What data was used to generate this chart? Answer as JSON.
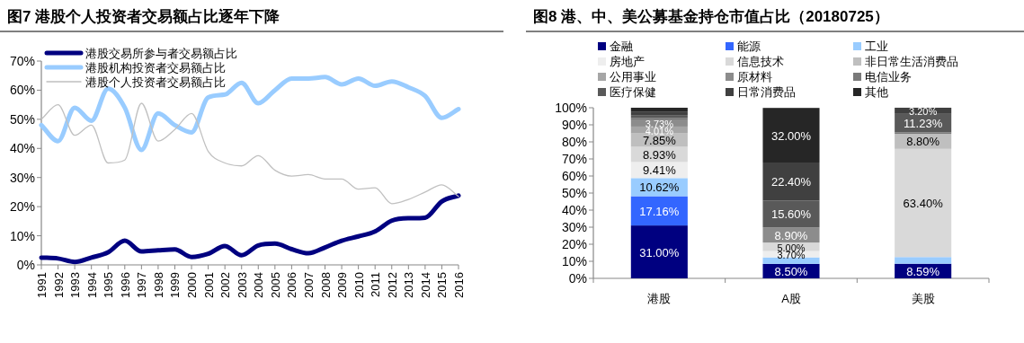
{
  "chart_data": [
    {
      "type": "line",
      "title": "图7  港股个人投资者交易额占比逐年下降",
      "categories": [
        "1991",
        "1992",
        "1993",
        "1994",
        "1995",
        "1996",
        "1997",
        "1998",
        "1999",
        "2000",
        "2001",
        "2002",
        "2003",
        "2004",
        "2005",
        "2006",
        "2007",
        "2008",
        "2009",
        "2010",
        "2011",
        "2012",
        "2013",
        "2014",
        "2015",
        "2016"
      ],
      "series": [
        {
          "name": "港股交易所参与者交易额占比",
          "color": "#000080",
          "values": [
            2.5,
            2.2,
            1.0,
            2.5,
            4.3,
            8.3,
            4.6,
            5.0,
            5.3,
            2.7,
            3.8,
            6.5,
            3.3,
            6.7,
            7.3,
            5.4,
            4.0,
            6.0,
            8.3,
            9.8,
            11.5,
            15.2,
            16.0,
            16.2,
            21.8,
            23.8
          ]
        },
        {
          "name": "港股机构投资者交易额占比",
          "color": "#99ccff",
          "values": [
            48,
            42.5,
            54,
            49.5,
            60.5,
            54,
            39.5,
            52,
            48,
            45.5,
            57.5,
            58.5,
            62.5,
            55.5,
            60,
            64,
            64,
            64.5,
            62,
            64,
            61.5,
            63,
            61,
            58,
            50.5,
            53.5
          ]
        },
        {
          "name": "港股个人投资者交易额占比",
          "color": "#c0c0c0",
          "values": [
            50,
            55,
            44.5,
            48,
            35,
            36,
            55.5,
            42.5,
            46.5,
            52,
            39,
            35,
            34,
            37.5,
            32.5,
            30.5,
            31,
            29.5,
            29.5,
            26,
            26.5,
            21,
            22.5,
            25,
            27.5,
            23.5
          ]
        }
      ],
      "ylim": [
        0,
        70
      ],
      "yticks": [
        {
          "value": 0,
          "label": "0%"
        },
        {
          "value": 10,
          "label": "10%"
        },
        {
          "value": 20,
          "label": "20%"
        },
        {
          "value": 30,
          "label": "30%"
        },
        {
          "value": 40,
          "label": "40%"
        },
        {
          "value": 50,
          "label": "50%"
        },
        {
          "value": 60,
          "label": "60%"
        },
        {
          "value": 70,
          "label": "70%"
        }
      ],
      "legend": "top left",
      "grid": false,
      "marker": "none"
    },
    {
      "type": "bar",
      "stacked": true,
      "title": "图8  港、中、美公募基金持仓市值占比（20180725）",
      "categories": [
        "港股",
        "A股",
        "美股"
      ],
      "series": [
        {
          "name": "金融",
          "color": "#000080",
          "values": [
            31.0,
            8.5,
            8.59
          ],
          "value_labels": [
            "31.00%",
            "8.50%",
            "8.59%"
          ]
        },
        {
          "name": "能源",
          "color": "#3366ff",
          "values": [
            17.16,
            0,
            0
          ],
          "value_labels": [
            "17.16%",
            null,
            null
          ]
        },
        {
          "name": "工业",
          "color": "#99ccff",
          "values": [
            10.62,
            3.8,
            3.9
          ],
          "value_labels": [
            "10.62%",
            null,
            null
          ]
        },
        {
          "name": "房地产",
          "color": "#eeeeee",
          "values": [
            9.41,
            3.7,
            0
          ],
          "value_labels": [
            "9.41%",
            "3.70%",
            null
          ]
        },
        {
          "name": "信息技术",
          "color": "#d9d9d9",
          "values": [
            8.93,
            5.0,
            63.4
          ],
          "value_labels": [
            "8.93%",
            "5.00%",
            "63.40%"
          ]
        },
        {
          "name": "非日常生活消费品",
          "color": "#bfbfbf",
          "values": [
            7.85,
            0,
            8.8
          ],
          "value_labels": [
            "7.85%",
            null,
            "8.80%"
          ]
        },
        {
          "name": "公用事业",
          "color": "#a6a6a6",
          "values": [
            4.01,
            0,
            0
          ],
          "value_labels": [
            "4.01%",
            null,
            null
          ]
        },
        {
          "name": "原材料",
          "color": "#8c8c8c",
          "values": [
            3.73,
            8.9,
            0
          ],
          "value_labels": [
            "3.73%",
            "8.90%",
            null
          ]
        },
        {
          "name": "电信业务",
          "color": "#7a7a7a",
          "values": [
            1.2,
            0,
            0.9
          ],
          "value_labels": [
            null,
            null,
            null
          ]
        },
        {
          "name": "医疗保健",
          "color": "#595959",
          "values": [
            1.8,
            15.6,
            11.23
          ],
          "value_labels": [
            null,
            "15.60%",
            "11.23%"
          ]
        },
        {
          "name": "日常消费品",
          "color": "#404040",
          "values": [
            2.1,
            22.4,
            3.2
          ],
          "value_labels": [
            null,
            "22.40%",
            "3.20%"
          ]
        },
        {
          "name": "其他",
          "color": "#262626",
          "values": [
            2.2,
            32.0,
            0
          ],
          "value_labels": [
            null,
            "32.00%",
            null
          ]
        }
      ],
      "ylim": [
        0,
        100
      ],
      "yticks": [
        {
          "value": 0,
          "label": "0%"
        },
        {
          "value": 10,
          "label": "10%"
        },
        {
          "value": 20,
          "label": "20%"
        },
        {
          "value": 30,
          "label": "30%"
        },
        {
          "value": 40,
          "label": "40%"
        },
        {
          "value": 50,
          "label": "50%"
        },
        {
          "value": 60,
          "label": "60%"
        },
        {
          "value": 70,
          "label": "70%"
        },
        {
          "value": 80,
          "label": "80%"
        },
        {
          "value": 90,
          "label": "90%"
        },
        {
          "value": 100,
          "label": "100%"
        }
      ],
      "legend": "top",
      "grid": false
    }
  ]
}
